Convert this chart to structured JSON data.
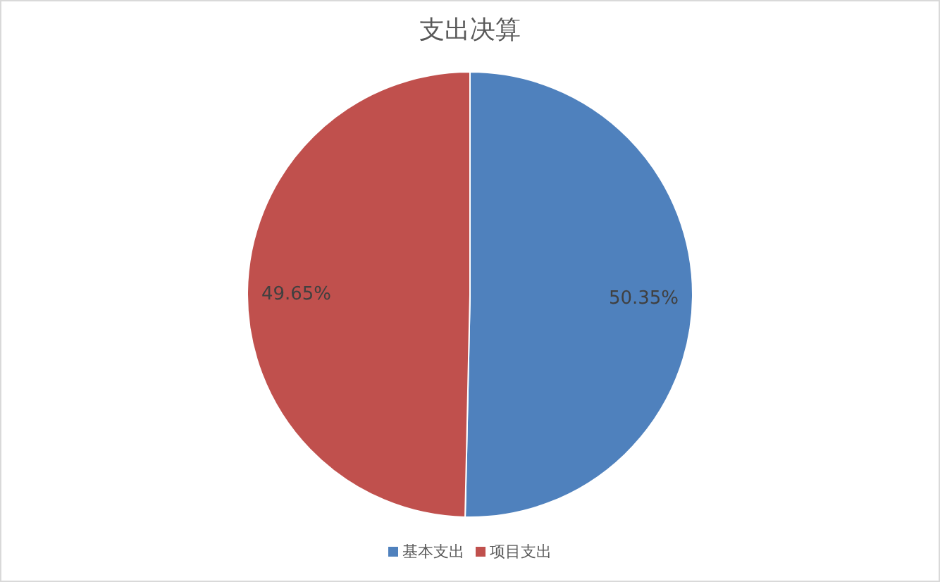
{
  "chart_data": {
    "type": "pie",
    "title": "支出决算",
    "categories": [
      "基本支出",
      "项目支出"
    ],
    "values": [
      50.35,
      49.65
    ],
    "colors": [
      "#4f81bd",
      "#c0504d"
    ],
    "value_labels": [
      "50.35%",
      "49.65%"
    ],
    "legend": "bottom"
  }
}
